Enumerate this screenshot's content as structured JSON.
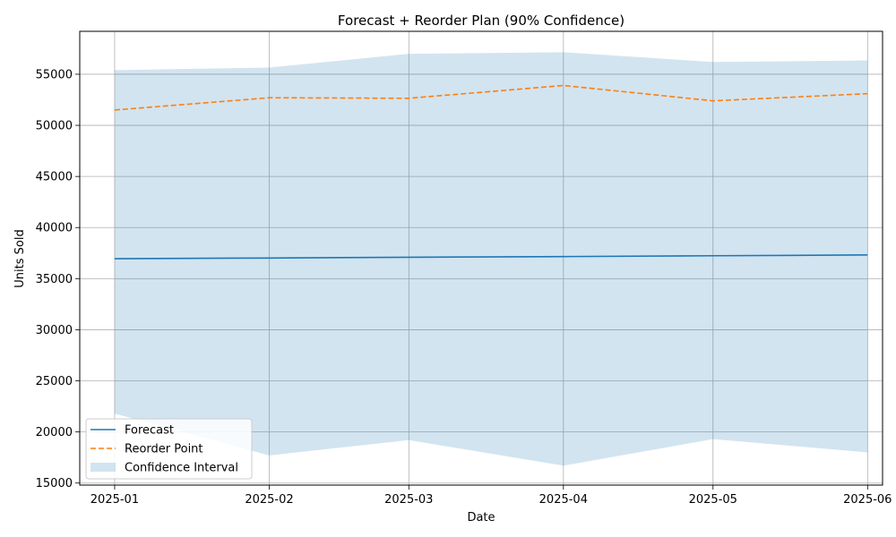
{
  "chart_data": {
    "type": "line",
    "title": "Forecast + Reorder Plan (90% Confidence)",
    "xlabel": "Date",
    "ylabel": "Units Sold",
    "categories": [
      "2025-01",
      "2025-02",
      "2025-03",
      "2025-04",
      "2025-05",
      "2025-06"
    ],
    "ylim": [
      14800,
      59200
    ],
    "xlim": [
      "2024-12-25",
      "2025-06-04"
    ],
    "yticks": [
      15000,
      20000,
      25000,
      30000,
      35000,
      40000,
      45000,
      50000,
      55000
    ],
    "grid": true,
    "legend_position": "lower-left",
    "series": [
      {
        "name": "Forecast",
        "style": "solid",
        "color": "#1f77b4",
        "values": [
          36950,
          37020,
          37090,
          37160,
          37240,
          37320
        ]
      },
      {
        "name": "Reorder Point",
        "style": "dashed",
        "color": "#ff7f0e",
        "values": [
          51500,
          52700,
          52650,
          53900,
          52400,
          53100
        ]
      }
    ],
    "band": {
      "name": "Confidence Interval",
      "color": "#1f77b4",
      "opacity": 0.2,
      "lower": [
        21800,
        17700,
        19200,
        16700,
        19300,
        18000
      ],
      "upper": [
        55400,
        55650,
        57000,
        57150,
        56200,
        56350
      ]
    }
  }
}
